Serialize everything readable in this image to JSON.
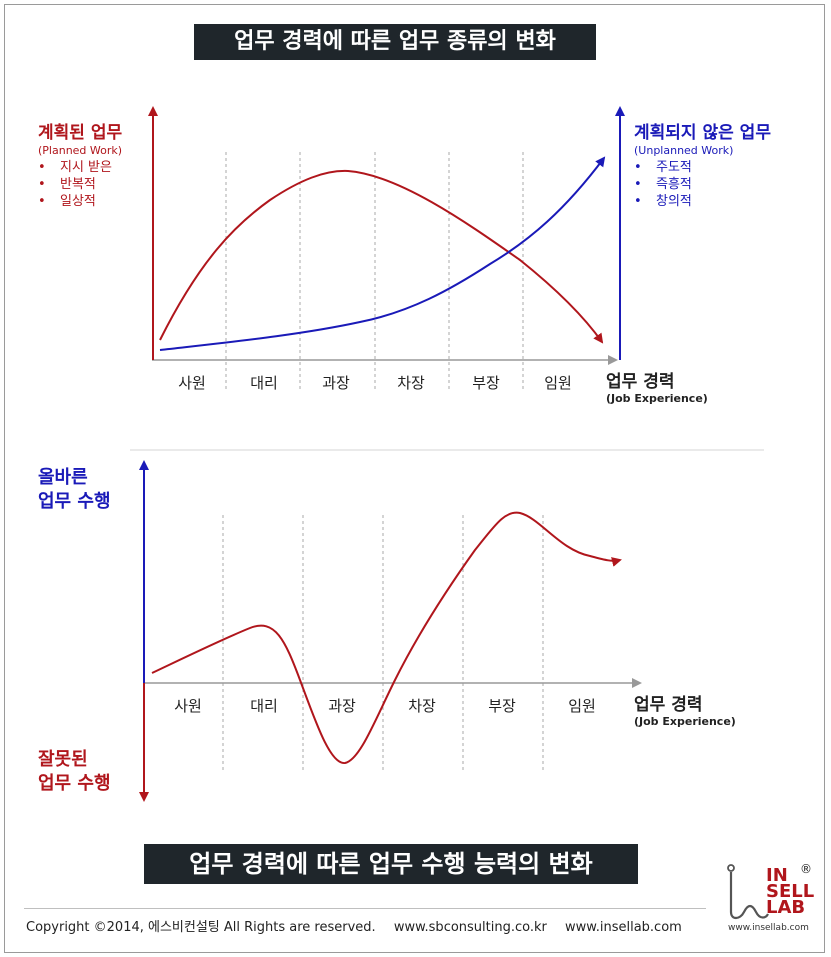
{
  "top_title": "업무 경력에 따른 업무 종류의 변화",
  "bottom_title": "업무 경력에 따른 업무 수행 능력의 변화",
  "chart1": {
    "left_heading": "계획된 업무",
    "left_sub": "(Planned Work)",
    "left_items": [
      "지시 받은",
      "반복적",
      "일상적"
    ],
    "right_heading": "계획되지 않은 업무",
    "right_sub": "(Unplanned Work)",
    "right_items": [
      "주도적",
      "즉흥적",
      "창의적"
    ],
    "categories": [
      "사원",
      "대리",
      "과장",
      "차장",
      "부장",
      "임원"
    ],
    "axis_title": "업무 경력",
    "axis_sub": "(Job Experience)"
  },
  "chart2": {
    "top_label": [
      "올바른",
      "업무 수행"
    ],
    "bottom_label": [
      "잘못된",
      "업무 수행"
    ],
    "categories": [
      "사원",
      "대리",
      "과장",
      "차장",
      "부장",
      "임원"
    ],
    "axis_title": "업무 경력",
    "axis_sub": "(Job Experience)"
  },
  "colors": {
    "red": "#b0161c",
    "blue": "#1a1ab8",
    "title_bg": "#1f262b"
  },
  "footer": {
    "copyright": "Copyright ©2014, 에스비컨설팅 All Rights are reserved.",
    "site1": "www.sbconsulting.co.kr",
    "site2": "www.insellab.com"
  },
  "logo": {
    "line1": "IN",
    "line2": "SELL",
    "line3": "LAB",
    "reg": "®",
    "url": "www.insellab.com"
  }
}
